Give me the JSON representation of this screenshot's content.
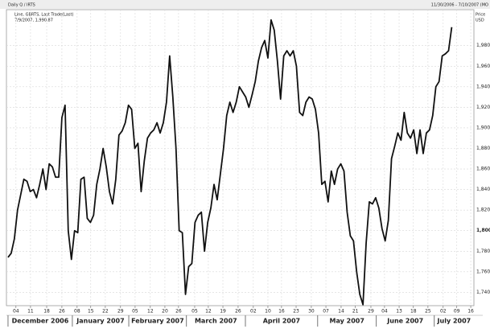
{
  "chart_data": {
    "type": "line",
    "title": "Daily Q / IRTS",
    "date_range": "11/30/2006 - 7/10/2007 (MO",
    "legend_line1": "Line, GBRTS, Last Trade(Last)",
    "legend_line2": "7/9/2007, 1,990.87",
    "y_label": "Price",
    "y_unit": "USD",
    "color": "#111111",
    "grid": true,
    "values": [
      1774,
      1778,
      1792,
      1820,
      1835,
      1850,
      1848,
      1838,
      1840,
      1832,
      1845,
      1860,
      1840,
      1865,
      1862,
      1852,
      1852,
      1910,
      1922,
      1800,
      1772,
      1800,
      1798,
      1850,
      1852,
      1812,
      1808,
      1815,
      1845,
      1860,
      1880,
      1862,
      1838,
      1826,
      1850,
      1893,
      1897,
      1905,
      1922,
      1918,
      1880,
      1885,
      1838,
      1868,
      1890,
      1895,
      1898,
      1905,
      1895,
      1905,
      1925,
      1970,
      1930,
      1880,
      1800,
      1798,
      1738,
      1765,
      1768,
      1808,
      1815,
      1818,
      1780,
      1808,
      1822,
      1845,
      1830,
      1855,
      1880,
      1912,
      1925,
      1915,
      1925,
      1940,
      1935,
      1930,
      1920,
      1932,
      1945,
      1965,
      1978,
      1985,
      1968,
      2005,
      1995,
      1965,
      1928,
      1970,
      1975,
      1970,
      1975,
      1960,
      1915,
      1912,
      1925,
      1930,
      1928,
      1918,
      1895,
      1845,
      1848,
      1828,
      1858,
      1845,
      1860,
      1865,
      1858,
      1818,
      1795,
      1790,
      1760,
      1738,
      1728,
      1788,
      1828,
      1826,
      1832,
      1822,
      1802,
      1790,
      1810,
      1870,
      1882,
      1895,
      1888,
      1915,
      1895,
      1890,
      1898,
      1875,
      1898,
      1875,
      1895,
      1898,
      1912,
      1940,
      1945,
      1970,
      1972,
      1975,
      1998
    ],
    "xlim": [
      -0.5,
      147
    ],
    "xticks": [
      {
        "value": 2.5,
        "label": "04"
      },
      {
        "value": 7.1,
        "label": "11"
      },
      {
        "value": 12.2,
        "label": "18"
      },
      {
        "value": 17,
        "label": "26"
      },
      {
        "value": 21.8,
        "label": "08"
      },
      {
        "value": 26.1,
        "label": "15"
      },
      {
        "value": 30.7,
        "label": "22"
      },
      {
        "value": 35.5,
        "label": "29"
      },
      {
        "value": 40.1,
        "label": "05"
      },
      {
        "value": 44.9,
        "label": "12"
      },
      {
        "value": 49.5,
        "label": "20"
      },
      {
        "value": 53.8,
        "label": "26"
      },
      {
        "value": 58.9,
        "label": "05"
      },
      {
        "value": 63.2,
        "label": "12"
      },
      {
        "value": 67.8,
        "label": "19"
      },
      {
        "value": 72.6,
        "label": "26"
      },
      {
        "value": 77.4,
        "label": "02"
      },
      {
        "value": 82,
        "label": "10"
      },
      {
        "value": 86.3,
        "label": "16"
      },
      {
        "value": 90.9,
        "label": "23"
      },
      {
        "value": 95.7,
        "label": "30"
      },
      {
        "value": 100.3,
        "label": "07"
      },
      {
        "value": 105.1,
        "label": "14"
      },
      {
        "value": 109.6,
        "label": "21"
      },
      {
        "value": 114.5,
        "label": "29"
      },
      {
        "value": 118.8,
        "label": "04"
      },
      {
        "value": 123.4,
        "label": "13"
      },
      {
        "value": 127.9,
        "label": "18"
      },
      {
        "value": 132.5,
        "label": "25"
      },
      {
        "value": 137.3,
        "label": "02"
      },
      {
        "value": 141.6,
        "label": "09"
      },
      {
        "value": 146,
        "label": "16"
      }
    ],
    "months": [
      {
        "value": 0,
        "label": "December 2006"
      },
      {
        "value": 20.3,
        "label": "January 2007"
      },
      {
        "value": 38.1,
        "label": "February 2007"
      },
      {
        "value": 56.3,
        "label": "March 2007"
      },
      {
        "value": 74.9,
        "label": "April 2007"
      },
      {
        "value": 97.7,
        "label": "May 2007"
      },
      {
        "value": 116.2,
        "label": "June 2007"
      },
      {
        "value": 134.5,
        "label": "July 2007"
      }
    ],
    "ylim": [
      1727,
      2015
    ],
    "yticks": [
      {
        "value": 1740,
        "label": "1,740"
      },
      {
        "value": 1760,
        "label": "1,760"
      },
      {
        "value": 1780,
        "label": "1,780"
      },
      {
        "value": 1800,
        "label": "1,800"
      },
      {
        "value": 1820,
        "label": "1,820"
      },
      {
        "value": 1840,
        "label": "1,840"
      },
      {
        "value": 1860,
        "label": "1,860"
      },
      {
        "value": 1880,
        "label": "1,880"
      },
      {
        "value": 1900,
        "label": "1,900"
      },
      {
        "value": 1920,
        "label": "1,920"
      },
      {
        "value": 1940,
        "label": "1,940"
      },
      {
        "value": 1960,
        "label": "1,960"
      },
      {
        "value": 1980,
        "label": "1,980"
      }
    ]
  }
}
